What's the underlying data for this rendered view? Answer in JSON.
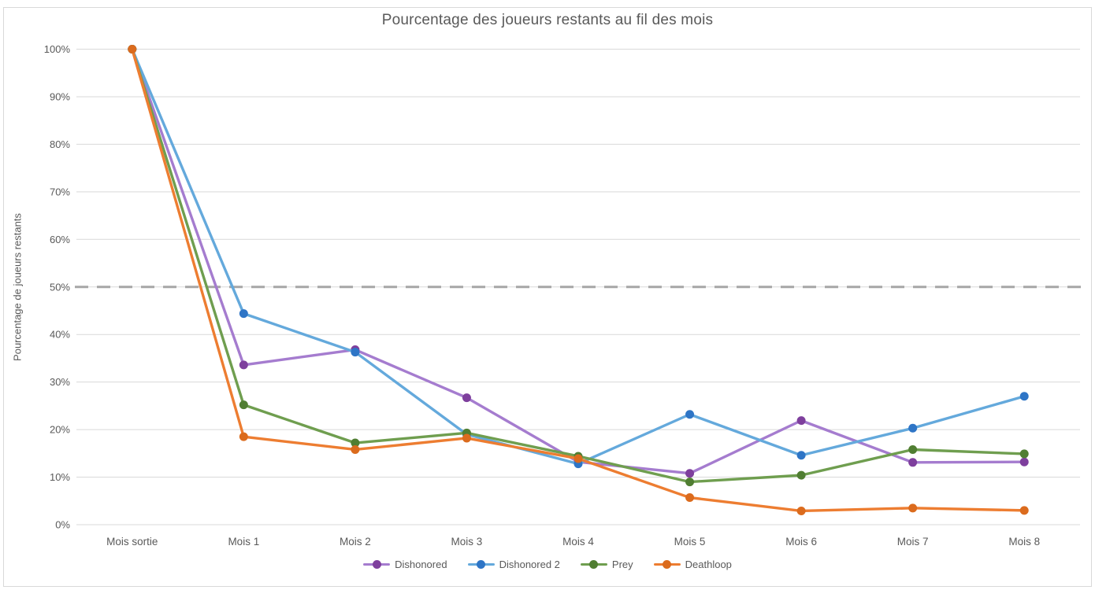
{
  "chart_data": {
    "type": "line",
    "title": "Pourcentage des joueurs restants au fil des mois",
    "xlabel": "",
    "ylabel": "Pourcentage de joueurs restants",
    "categories": [
      "Mois sortie",
      "Mois 1",
      "Mois 2",
      "Mois 3",
      "Mois 4",
      "Mois 5",
      "Mois 6",
      "Mois 7",
      "Mois 8"
    ],
    "ylim": [
      0,
      100
    ],
    "ytick_step": 10,
    "ytick_suffix": "%",
    "grid": "horizontal",
    "legend_position": "bottom",
    "reference_line": {
      "value": 50,
      "style": "dashed",
      "color": "#a6a6a6"
    },
    "series": [
      {
        "name": "Dishonored",
        "line_color": "#a57ccf",
        "marker_color": "#7e3f9d",
        "values": [
          100,
          33.6,
          36.8,
          26.7,
          13.2,
          10.8,
          21.9,
          13.1,
          13.2
        ]
      },
      {
        "name": "Dishonored 2",
        "line_color": "#64a9dc",
        "marker_color": "#2e75c6",
        "values": [
          100,
          44.4,
          36.3,
          19.0,
          12.8,
          23.2,
          14.6,
          20.3,
          27.0
        ]
      },
      {
        "name": "Prey",
        "line_color": "#6f9e4f",
        "marker_color": "#507e32",
        "values": [
          100,
          25.2,
          17.2,
          19.3,
          14.4,
          9.0,
          10.4,
          15.8,
          14.9
        ]
      },
      {
        "name": "Deathloop",
        "line_color": "#ed7d31",
        "marker_color": "#db6b1d",
        "values": [
          100,
          18.5,
          15.8,
          18.2,
          13.9,
          5.7,
          2.9,
          3.5,
          3.0
        ]
      }
    ],
    "colors": {
      "background": "#ffffff",
      "grid": "#d9d9d9",
      "border": "#d9d9d9",
      "axis_text": "#595959",
      "title_text": "#595959"
    }
  }
}
